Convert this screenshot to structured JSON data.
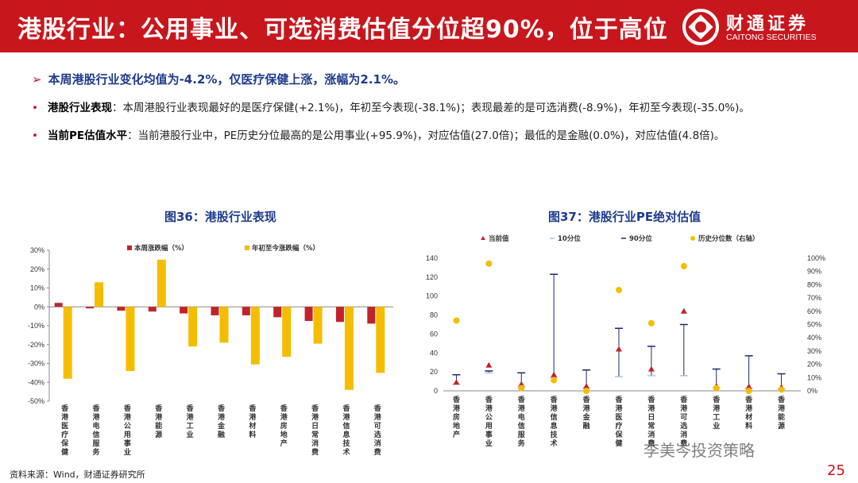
{
  "header": {
    "title": "港股行业：公用事业、可选消费估值分位超90%，位于高位",
    "logo_cn": "财通证券",
    "logo_en": "CAITONG SECURITIES"
  },
  "summary": "本周港股行业变化均值为-4.2%，仅医疗保健上涨，涨幅为2.1%。",
  "bullets": [
    {
      "label": "港股行业表现",
      "text": "：本周港股行业表现最好的是医疗保健(+2.1%)，年初至今表现(-38.1%)；表现最差的是可选消费(-8.9%)，年初至今表现(-35.0%)。"
    },
    {
      "label": "当前PE估值水平",
      "text": "：当前港股行业中，PE历史分位最高的是公用事业(+95.9%)，对应估值(27.0倍)；最低的是金融(0.0%)，对应估值(4.8倍)。"
    }
  ],
  "footer": "资料来源：Wind，财通证券研究所",
  "page_number": "25",
  "watermark": "李美岑投资策略",
  "colors": {
    "brand_red": "#c8161d",
    "title_blue": "#1f3b8c",
    "bar_red": "#c0242b",
    "bar_yellow": "#f5bd00",
    "line_navy": "#1a2a6c"
  },
  "chart_data": [
    {
      "type": "bar",
      "title": "图36：港股行业表现",
      "categories": [
        "香港医疗保健",
        "香港电信服务",
        "香港公用事业",
        "香港能源",
        "香港工业",
        "香港金融",
        "香港材料",
        "香港房地产",
        "香港日常消费",
        "香港信息技术",
        "香港可选消费"
      ],
      "series": [
        {
          "name": "本周涨跌幅（%）",
          "color": "#c0242b",
          "values": [
            2.1,
            -0.8,
            -2.0,
            -2.5,
            -3.5,
            -4.5,
            -4.5,
            -5.5,
            -7.5,
            -8.0,
            -8.9
          ]
        },
        {
          "name": "年初至今涨跌幅（%）",
          "color": "#f5bd00",
          "values": [
            -38.1,
            13.0,
            -34.0,
            25.0,
            -21.0,
            -19.0,
            -30.5,
            -26.5,
            -19.5,
            -44.0,
            -35.0
          ]
        }
      ],
      "ylim": [
        -50,
        30
      ],
      "yticks": [
        "30%",
        "20%",
        "10%",
        "0%",
        "-10%",
        "-20%",
        "-30%",
        "-40%",
        "-50%"
      ],
      "legend_position": "top"
    },
    {
      "type": "scatter",
      "title": "图37：港股行业PE绝对估值",
      "categories": [
        "香港房地产",
        "香港公用事业",
        "香港电信服务",
        "香港信息技术",
        "香港金融",
        "香港医疗保健",
        "香港日常消费",
        "香港可选消费",
        "香港工业",
        "香港材料",
        "香港能源"
      ],
      "series": [
        {
          "name": "当前值",
          "marker": "triangle",
          "color": "#c0242b",
          "axis": "left",
          "values": [
            9,
            27,
            7,
            17,
            4.8,
            44,
            23,
            84,
            5,
            4.5,
            4
          ]
        },
        {
          "name": "10分位",
          "marker": "dash",
          "color": "#a9c1e0",
          "axis": "left",
          "values": [
            7,
            19,
            4,
            14,
            3,
            15,
            16,
            16,
            3,
            2.5,
            2
          ]
        },
        {
          "name": "90分位",
          "marker": "dash",
          "color": "#1a2a6c",
          "axis": "left",
          "values": [
            17,
            21,
            19,
            123,
            22,
            66,
            47,
            70,
            23,
            37,
            18
          ]
        },
        {
          "name": "历史分位数（右轴）",
          "marker": "circle",
          "color": "#f5bd00",
          "axis": "right",
          "values": [
            0.53,
            0.959,
            0.02,
            0.08,
            0.0,
            0.76,
            0.51,
            0.94,
            0.02,
            0.0,
            0.01
          ]
        }
      ],
      "ylim": [
        0,
        140
      ],
      "yticks": [
        "0",
        "20",
        "40",
        "60",
        "80",
        "100",
        "120",
        "140"
      ],
      "y2lim": [
        0,
        1
      ],
      "y2ticks": [
        "0%",
        "10%",
        "20%",
        "30%",
        "40%",
        "50%",
        "60%",
        "70%",
        "80%",
        "90%",
        "100%"
      ],
      "legend_position": "top"
    }
  ]
}
